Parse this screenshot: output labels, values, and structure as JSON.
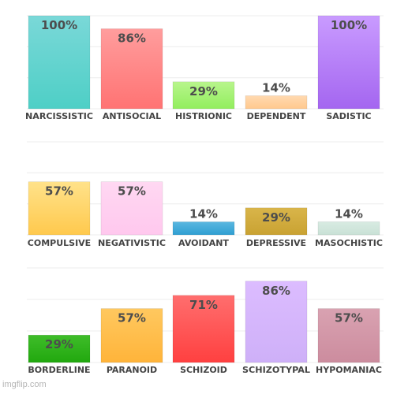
{
  "chart_data": [
    {
      "type": "bar",
      "categories": [
        "NARCISSISTIC",
        "ANTISOCIAL",
        "HISTRIONIC",
        "DEPENDENT",
        "SADISTIC"
      ],
      "values": [
        100,
        86,
        29,
        14,
        100
      ],
      "labels": [
        "100%",
        "86%",
        "29%",
        "14%",
        "100%"
      ],
      "colors": [
        [
          "#7ad8d8",
          "#4ecfc6"
        ],
        [
          "#ff9d9d",
          "#ff7373"
        ],
        [
          "#b8f58c",
          "#92ee5e"
        ],
        [
          "#ffd9b0",
          "#ffc98e"
        ],
        [
          "#c99bff",
          "#a466f0"
        ]
      ],
      "ylim": [
        0,
        100
      ],
      "grid": true
    },
    {
      "type": "bar",
      "categories": [
        "COMPULSIVE",
        "NEGATIVISTIC",
        "AVOIDANT",
        "DEPRESSIVE",
        "MASOCHISTIC"
      ],
      "values": [
        57,
        57,
        14,
        29,
        14
      ],
      "labels": [
        "57%",
        "57%",
        "14%",
        "29%",
        "14%"
      ],
      "colors": [
        [
          "#ffe28a",
          "#ffc94d"
        ],
        [
          "#ffd8f2",
          "#ffc8ee"
        ],
        [
          "#5ab7e0",
          "#2f9fd2"
        ],
        [
          "#d9b54a",
          "#c9a232"
        ],
        [
          "#d8ebe2",
          "#c9e1d6"
        ]
      ],
      "ylim": [
        0,
        100
      ],
      "grid": true
    },
    {
      "type": "bar",
      "categories": [
        "BORDERLINE",
        "PARANOID",
        "SCHIZOID",
        "SCHIZOTYPAL",
        "HYPOMANIAC"
      ],
      "values": [
        29,
        57,
        71,
        86,
        57
      ],
      "labels": [
        "29%",
        "57%",
        "71%",
        "86%",
        "57%"
      ],
      "colors": [
        [
          "#3fbd2a",
          "#21a80e"
        ],
        [
          "#ffc85f",
          "#ffb43a"
        ],
        [
          "#ff6e6e",
          "#ff4040"
        ],
        [
          "#dcbcff",
          "#ceb0f8"
        ],
        [
          "#d9a2b1",
          "#cc8c9e"
        ]
      ],
      "ylim": [
        0,
        100
      ],
      "grid": true
    }
  ],
  "watermark": "imgflip.com"
}
